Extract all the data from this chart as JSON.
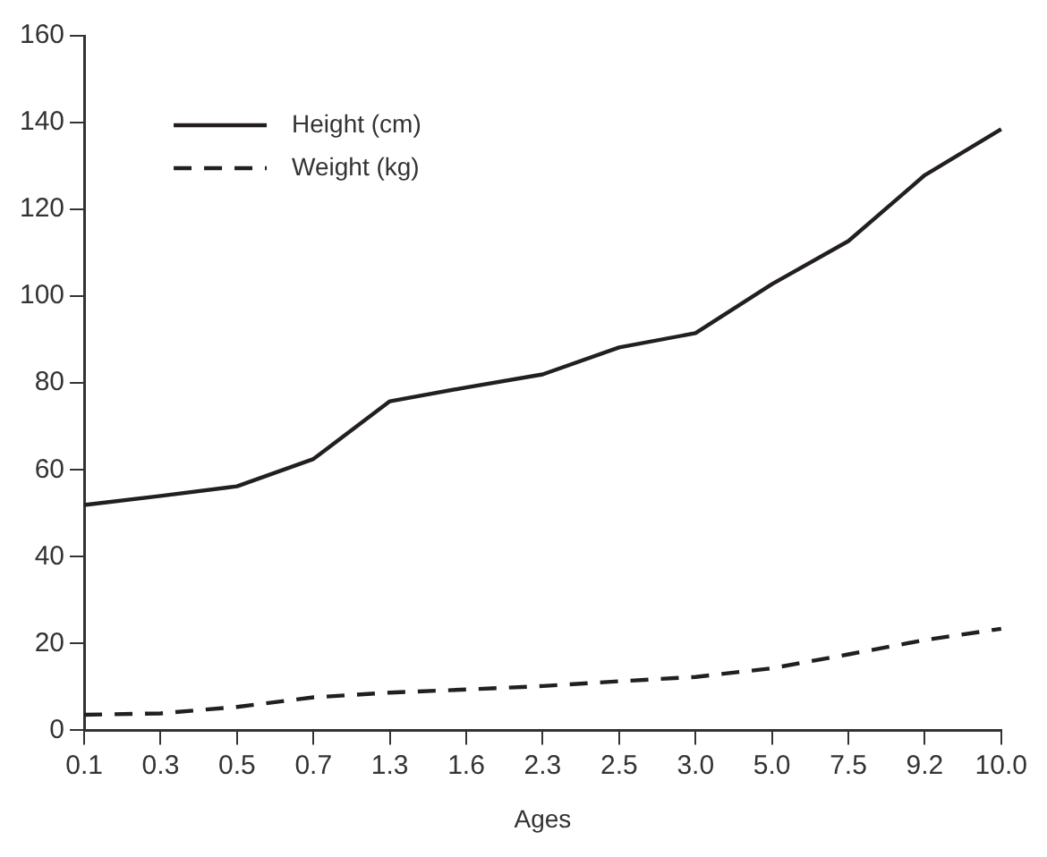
{
  "chart_data": {
    "type": "line",
    "xlabel": "Ages",
    "categories": [
      "0.1",
      "0.3",
      "0.5",
      "0.7",
      "1.3",
      "1.6",
      "2.3",
      "2.5",
      "3.0",
      "5.0",
      "7.5",
      "9.2",
      "10.0"
    ],
    "series": [
      {
        "name": "Height (cm)",
        "color": "#231f20",
        "line_style": "solid",
        "values": [
          51.9,
          54,
          56.2,
          62.5,
          75.8,
          79,
          82,
          88.2,
          91.5,
          102.8,
          112.7,
          127.9,
          138.5
        ]
      },
      {
        "name": "Weight (kg)",
        "color": "#231f20",
        "line_style": "dashed",
        "values": [
          3.6,
          3.9,
          5.4,
          7.6,
          8.7,
          9.4,
          10.2,
          11.3,
          12.3,
          14.3,
          17.5,
          20.8,
          23.4
        ]
      }
    ],
    "ylim": [
      0,
      160
    ],
    "yticks": [
      0,
      20,
      40,
      60,
      80,
      100,
      120,
      140,
      160
    ],
    "grid": false,
    "legend": "top left",
    "marker": "none"
  }
}
